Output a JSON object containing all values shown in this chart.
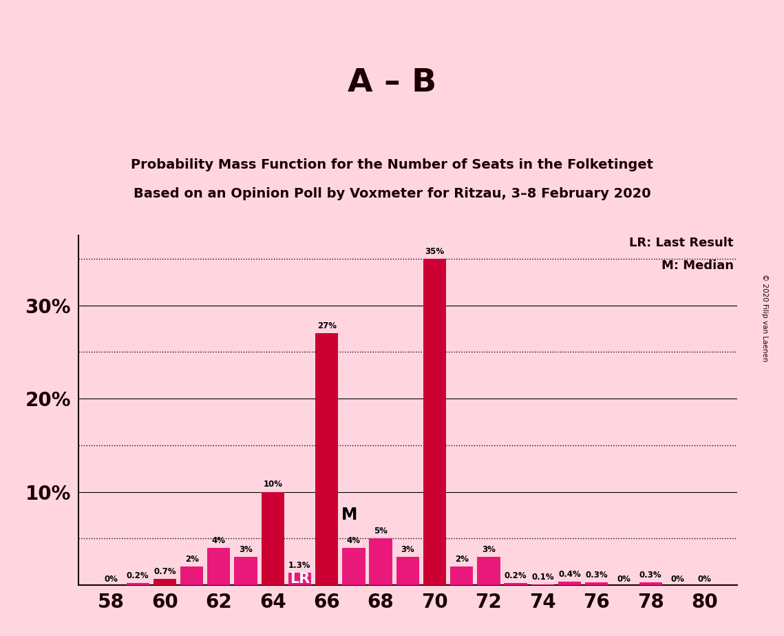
{
  "seats": [
    58,
    59,
    60,
    61,
    62,
    63,
    64,
    65,
    66,
    67,
    68,
    69,
    70,
    71,
    72,
    73,
    74,
    75,
    76,
    77,
    78,
    79,
    80
  ],
  "probabilities": [
    0.0,
    0.2,
    0.7,
    2.0,
    4.0,
    3.0,
    10.0,
    1.3,
    27.0,
    4.0,
    5.0,
    3.0,
    35.0,
    2.0,
    3.0,
    0.2,
    0.1,
    0.4,
    0.3,
    0.0,
    0.3,
    0.0,
    0.0
  ],
  "labels": [
    "0%",
    "0.2%",
    "0.7%",
    "2%",
    "4%",
    "3%",
    "10%",
    "1.3%",
    "27%",
    "4%",
    "5%",
    "3%",
    "35%",
    "2%",
    "3%",
    "0.2%",
    "0.1%",
    "0.4%",
    "0.3%",
    "0%",
    "0.3%",
    "0%",
    "0%"
  ],
  "LR_seat": 65,
  "M_seat": 66,
  "dark_red_seats": [
    60,
    64,
    66,
    70
  ],
  "bar_color_dark": "#CC0033",
  "bar_color_pink": "#E8197A",
  "background_color": "#FFD6E0",
  "title_main": "A – B",
  "title_sub1": "Probability Mass Function for the Number of Seats in the Folketinget",
  "title_sub2": "Based on an Opinion Poll by Voxmeter for Ritzau, 3–8 February 2020",
  "xlabel_ticks": [
    58,
    60,
    62,
    64,
    66,
    68,
    70,
    72,
    74,
    76,
    78,
    80
  ],
  "ylim": [
    0,
    37.5
  ],
  "ytick_solid": [
    10,
    20,
    30
  ],
  "ytick_dotted": [
    5,
    15,
    25,
    35
  ],
  "legend_LR": "LR: Last Result",
  "legend_M": "M: Median",
  "copyright": "© 2020 Filip van Laenen"
}
